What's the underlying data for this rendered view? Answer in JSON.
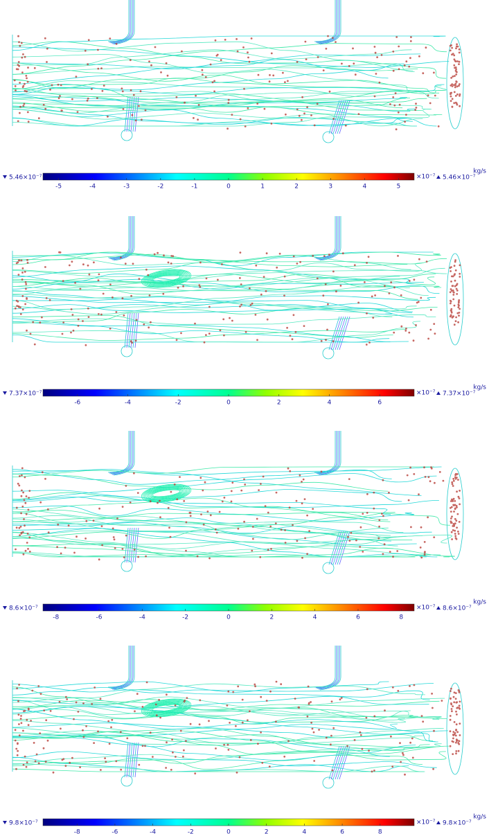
{
  "panels": [
    {
      "colorbar": {
        "min_label": "5.46×10⁻⁷",
        "max_label": "5.46×10⁻⁷",
        "exponent": "×10⁻⁷",
        "unit": "kg/s",
        "lim": [
          -5.46,
          5.46
        ],
        "ticks": [
          -5,
          -4,
          -3,
          -2,
          -1,
          0,
          1,
          2,
          3,
          4,
          5
        ]
      }
    },
    {
      "colorbar": {
        "min_label": "7.37×10⁻⁷",
        "max_label": "7.37×10⁻⁷",
        "exponent": "×10⁻⁷",
        "unit": "kg/s",
        "lim": [
          -7.37,
          7.37
        ],
        "ticks": [
          -6,
          -4,
          -2,
          0,
          2,
          4,
          6
        ]
      }
    },
    {
      "colorbar": {
        "min_label": "8.6×10⁻⁷",
        "max_label": "8.6×10⁻⁷",
        "exponent": "×10⁻⁷",
        "unit": "kg/s",
        "lim": [
          -8.6,
          8.6
        ],
        "ticks": [
          -8,
          -6,
          -4,
          -2,
          0,
          2,
          4,
          6,
          8
        ]
      }
    },
    {
      "colorbar": {
        "min_label": "9.8×10⁻⁷",
        "max_label": "9.8×10⁻⁷",
        "exponent": "×10⁻⁷",
        "unit": "kg/s",
        "lim": [
          -9.8,
          9.8
        ],
        "ticks": [
          -8,
          -6,
          -4,
          -2,
          0,
          2,
          4,
          6,
          8
        ]
      }
    }
  ]
}
